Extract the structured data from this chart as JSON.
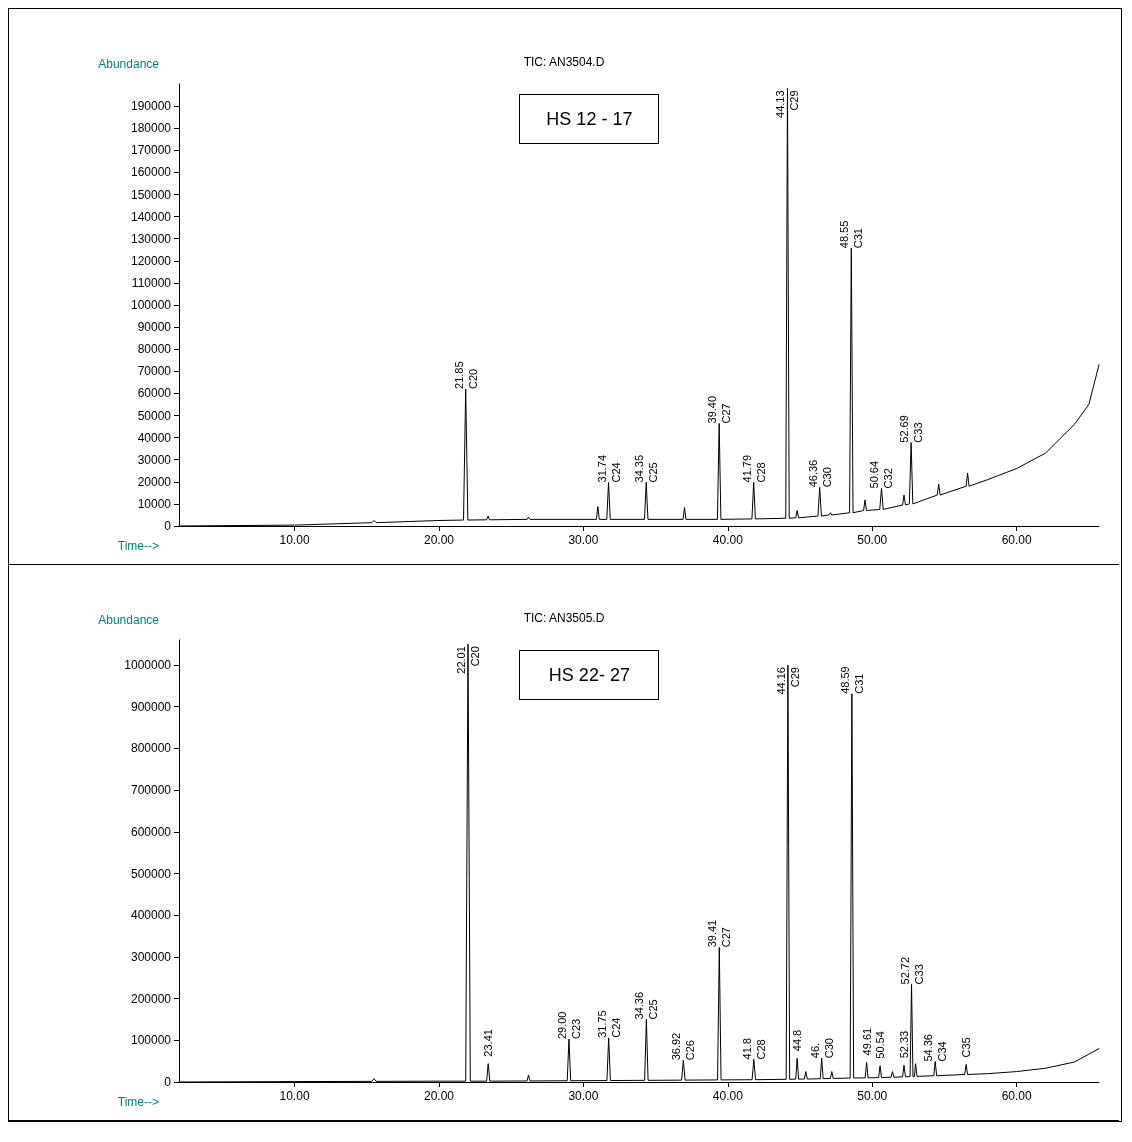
{
  "chart_data": [
    {
      "type": "line",
      "title": "TIC: AN3504.D",
      "xlabel": "Time-->",
      "ylabel": "Abundance",
      "series": [
        {
          "color": "#000000",
          "x": [
            2,
            10,
            15.35,
            15.5,
            15.65,
            20,
            21.7,
            21.85,
            22.0,
            23.3,
            23.4,
            23.5,
            26.1,
            26.2,
            26.3,
            30.9,
            31.0,
            31.1,
            31.62,
            31.74,
            31.86,
            34.23,
            34.35,
            34.47,
            36.9,
            37.0,
            37.1,
            39.28,
            39.4,
            39.52,
            41.67,
            41.79,
            41.91,
            44.01,
            44.13,
            44.25,
            44.7,
            44.8,
            44.9,
            46.24,
            46.36,
            46.48,
            47.0,
            47.1,
            47.2,
            48.43,
            48.55,
            48.67,
            49.4,
            49.5,
            49.6,
            50.52,
            50.64,
            50.76,
            52.1,
            52.2,
            52.3,
            52.57,
            52.69,
            52.81,
            54.5,
            54.6,
            54.7,
            56.5,
            56.6,
            56.7,
            58,
            60,
            62,
            64,
            65,
            65.7
          ],
          "values": [
            0,
            400,
            1500,
            2500,
            1500,
            2500,
            2700,
            62000,
            2700,
            2800,
            4500,
            2800,
            3000,
            4000,
            3000,
            3000,
            8800,
            3000,
            3000,
            19700,
            3000,
            3000,
            19700,
            3000,
            3000,
            8300,
            3000,
            3000,
            46400,
            3000,
            3200,
            19700,
            3200,
            3500,
            198000,
            3500,
            3700,
            7000,
            3700,
            4500,
            17500,
            4500,
            5000,
            6000,
            5000,
            6000,
            125700,
            6000,
            7000,
            11800,
            7000,
            7500,
            17000,
            7500,
            9500,
            14000,
            9500,
            10000,
            37700,
            10000,
            14000,
            19000,
            14000,
            18000,
            24000,
            18000,
            21000,
            26000,
            33000,
            46000,
            55000,
            73000
          ]
        }
      ],
      "xlim": [
        2,
        65.7
      ],
      "xticks": [
        {
          "value": 10,
          "label": "10.00"
        },
        {
          "value": 20,
          "label": "20.00"
        },
        {
          "value": 30,
          "label": "30.00"
        },
        {
          "value": 40,
          "label": "40.00"
        },
        {
          "value": 50,
          "label": "50.00"
        },
        {
          "value": 60,
          "label": "60.00"
        }
      ],
      "ylim": [
        0,
        200000
      ],
      "yticks": [
        0,
        10000,
        20000,
        30000,
        40000,
        50000,
        60000,
        70000,
        80000,
        90000,
        100000,
        110000,
        120000,
        130000,
        140000,
        150000,
        160000,
        170000,
        180000,
        190000
      ],
      "annotations": [
        "HS 12 - 17",
        {
          "text": "21.85",
          "x": 21.85,
          "y": 62000
        },
        {
          "text": "C20",
          "x": 21.85,
          "y": 62000
        },
        {
          "text": "31.74",
          "x": 31.74,
          "y": 19700
        },
        {
          "text": "C24",
          "x": 31.74,
          "y": 19700
        },
        {
          "text": "34.35",
          "x": 34.35,
          "y": 19700
        },
        {
          "text": "C25",
          "x": 34.35,
          "y": 19700
        },
        {
          "text": "39.40",
          "x": 39.4,
          "y": 46400
        },
        {
          "text": "C27",
          "x": 39.4,
          "y": 46400
        },
        {
          "text": "41.79",
          "x": 41.79,
          "y": 19700
        },
        {
          "text": "C28",
          "x": 41.79,
          "y": 19700
        },
        {
          "text": "44.13",
          "x": 44.13,
          "y": 198000
        },
        {
          "text": "C29",
          "x": 44.13,
          "y": 198000
        },
        {
          "text": "46.36",
          "x": 46.36,
          "y": 17500
        },
        {
          "text": "C30",
          "x": 46.36,
          "y": 17500
        },
        {
          "text": "48.55",
          "x": 48.55,
          "y": 125700
        },
        {
          "text": "C31",
          "x": 48.55,
          "y": 125700
        },
        {
          "text": "50.64",
          "x": 50.64,
          "y": 17000
        },
        {
          "text": "C32",
          "x": 50.64,
          "y": 17000
        },
        {
          "text": "52.69",
          "x": 52.69,
          "y": 37700
        },
        {
          "text": "C33",
          "x": 52.69,
          "y": 37700
        }
      ]
    },
    {
      "type": "line",
      "title": "TIC: AN3505.D",
      "xlabel": "Time-->",
      "ylabel": "Abundance",
      "series": [
        {
          "color": "#000000",
          "x": [
            2,
            10,
            15.35,
            15.5,
            15.65,
            20,
            21.85,
            22.01,
            22.17,
            23.3,
            23.41,
            23.52,
            26.1,
            26.2,
            26.3,
            28.88,
            29.0,
            29.12,
            31.63,
            31.75,
            31.87,
            34.24,
            34.36,
            34.48,
            36.8,
            36.92,
            37.04,
            39.29,
            39.41,
            39.53,
            41.68,
            41.8,
            41.92,
            44.04,
            44.16,
            44.28,
            44.7,
            44.8,
            44.9,
            45.3,
            45.4,
            45.5,
            46.4,
            46.5,
            46.6,
            47.1,
            47.2,
            47.3,
            48.47,
            48.59,
            48.71,
            49.51,
            49.61,
            49.71,
            50.44,
            50.54,
            50.64,
            51.3,
            51.4,
            51.5,
            52.1,
            52.2,
            52.3,
            52.62,
            52.72,
            52.82,
            52.92,
            53.0,
            53.1,
            54.26,
            54.36,
            54.46,
            56.4,
            56.5,
            56.6,
            58,
            60,
            62,
            64,
            65.7
          ],
          "values": [
            0,
            1000,
            1500,
            8000,
            1500,
            2000,
            2000,
            1050000,
            2000,
            2000,
            44000,
            2000,
            2500,
            17000,
            2500,
            3000,
            103000,
            3000,
            3500,
            106000,
            3500,
            4000,
            150000,
            4000,
            4500,
            52000,
            4500,
            5000,
            323000,
            5000,
            5500,
            54000,
            5500,
            6500,
            1000000,
            6500,
            7000,
            57000,
            7000,
            7000,
            25000,
            7000,
            8000,
            57000,
            8000,
            8500,
            25000,
            8500,
            9500,
            931000,
            9500,
            10000,
            47000,
            10000,
            10500,
            39000,
            10500,
            11500,
            25000,
            11500,
            12500,
            40000,
            12500,
            13000,
            234000,
            13000,
            13000,
            44000,
            13500,
            15000,
            49000,
            15000,
            18000,
            42000,
            18000,
            20000,
            25000,
            33000,
            48000,
            80000
          ]
        }
      ],
      "xlim": [
        2,
        65.7
      ],
      "xticks": [
        {
          "value": 10,
          "label": "10.00"
        },
        {
          "value": 20,
          "label": "20.00"
        },
        {
          "value": 30,
          "label": "30.00"
        },
        {
          "value": 40,
          "label": "40.00"
        },
        {
          "value": 50,
          "label": "50.00"
        },
        {
          "value": 60,
          "label": "60.00"
        }
      ],
      "ylim": [
        0,
        1060000
      ],
      "yticks": [
        0,
        100000,
        200000,
        300000,
        400000,
        500000,
        600000,
        700000,
        800000,
        900000,
        1000000
      ],
      "annotations": [
        "HS 22- 27",
        {
          "text": "22.01",
          "x": 22.01,
          "y": 1050000
        },
        {
          "text": "C20",
          "x": 22.01,
          "y": 1050000
        },
        {
          "text": "23.41",
          "x": 23.41,
          "y": 44000
        },
        {
          "text": "29.00",
          "x": 29.0,
          "y": 103000
        },
        {
          "text": "C23",
          "x": 29.0,
          "y": 103000
        },
        {
          "text": "31.75",
          "x": 31.75,
          "y": 106000
        },
        {
          "text": "C24",
          "x": 31.75,
          "y": 106000
        },
        {
          "text": "34.36",
          "x": 34.36,
          "y": 150000
        },
        {
          "text": "C25",
          "x": 34.36,
          "y": 150000
        },
        {
          "text": "36.92",
          "x": 36.92,
          "y": 52000
        },
        {
          "text": "C26",
          "x": 36.92,
          "y": 52000
        },
        {
          "text": "39.41",
          "x": 39.41,
          "y": 323000
        },
        {
          "text": "C27",
          "x": 39.41,
          "y": 323000
        },
        {
          "text": "41.8",
          "x": 41.8,
          "y": 54000
        },
        {
          "text": "C28",
          "x": 41.8,
          "y": 54000
        },
        {
          "text": "44.16",
          "x": 44.16,
          "y": 1000000
        },
        {
          "text": "C29",
          "x": 44.16,
          "y": 1000000
        },
        {
          "text": "44.8",
          "x": 44.8,
          "y": 57000
        },
        {
          "text": "46.",
          "x": 46.5,
          "y": 57000
        },
        {
          "text": "C30",
          "x": 46.5,
          "y": 57000
        },
        {
          "text": "48.59",
          "x": 48.59,
          "y": 931000
        },
        {
          "text": "C31",
          "x": 48.59,
          "y": 931000
        },
        {
          "text": "49.61",
          "x": 49.61,
          "y": 47000
        },
        {
          "text": "50.54",
          "x": 50.54,
          "y": 39000
        },
        {
          "text": "52.33",
          "x": 52.2,
          "y": 40000
        },
        {
          "text": "52.72",
          "x": 52.72,
          "y": 234000
        },
        {
          "text": "C33",
          "x": 52.72,
          "y": 234000
        },
        {
          "text": "54.36",
          "x": 54.36,
          "y": 49000
        },
        {
          "text": "C34",
          "x": 54.36,
          "y": 49000
        },
        {
          "text": "C35",
          "x": 56.5,
          "y": 42000
        }
      ]
    }
  ]
}
